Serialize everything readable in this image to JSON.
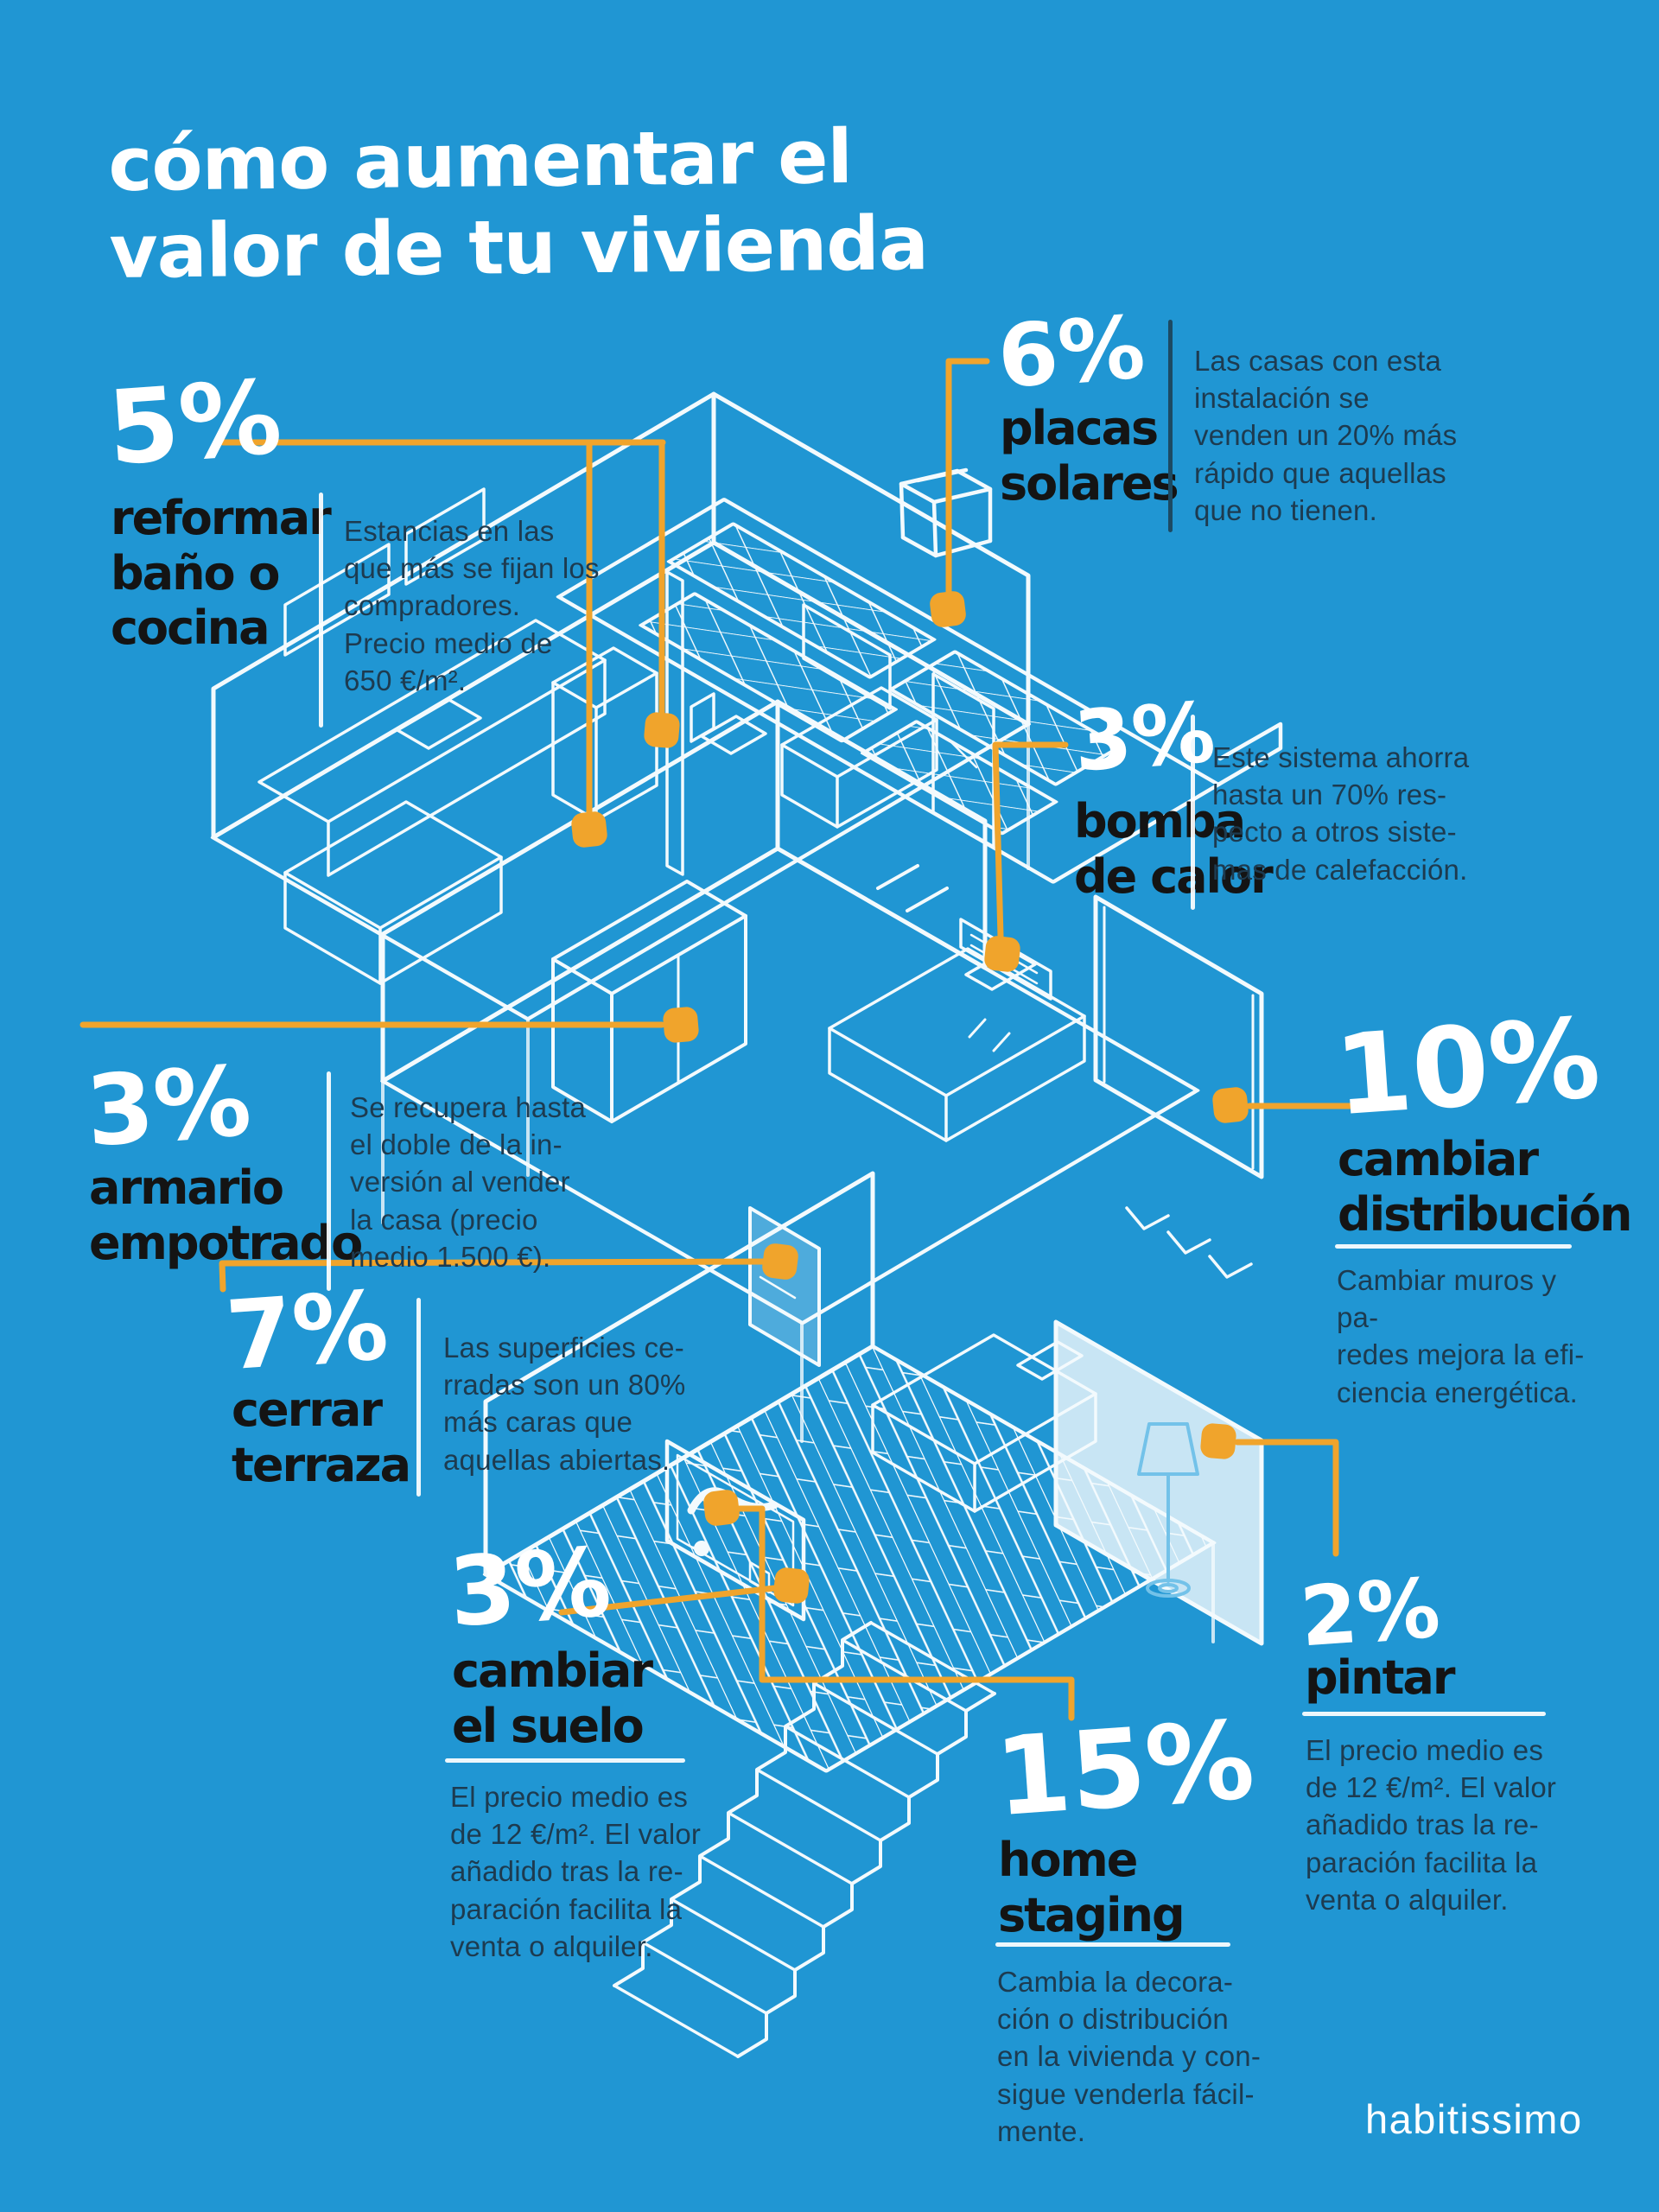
{
  "title": {
    "line1": "cómo aumentar el",
    "line2": "valor de tu vivienda"
  },
  "logo": "habitissimo",
  "colors": {
    "background": "#2096D3",
    "accent_orange": "#F0A42C",
    "label_black": "#141414",
    "description_navy": "#1D3B50",
    "white": "#FFFFFF"
  },
  "callouts": [
    {
      "id": "reformar-bano-cocina",
      "percent": "5%",
      "label_lines": [
        "reformar",
        "baño o",
        "cocina"
      ],
      "desc_lines": [
        "Estancias en las",
        "que más se fijan los",
        "compradores.",
        "Precio medio de",
        "650 €/m²."
      ]
    },
    {
      "id": "placas-solares",
      "percent": "6%",
      "label_lines": [
        "placas",
        "solares"
      ],
      "desc_lines": [
        "Las casas con esta",
        "instalación se",
        "venden un 20% más",
        "rápido que aquellas",
        "que no tienen."
      ]
    },
    {
      "id": "bomba-de-calor",
      "percent": "3%",
      "label_lines": [
        "bomba",
        "de calor"
      ],
      "desc_lines": [
        "Este sistema ahorra",
        "hasta un 70% res-",
        "pecto a otros siste-",
        "mas de calefacción."
      ]
    },
    {
      "id": "armario-empotrado",
      "percent": "3%",
      "label_lines": [
        "armario",
        "empotrado"
      ],
      "desc_lines": [
        "Se recupera hasta",
        "el doble de la in-",
        "versión al vender",
        "la casa (precio",
        "medio 1.500 €)."
      ]
    },
    {
      "id": "cerrar-terraza",
      "percent": "7%",
      "label_lines": [
        "cerrar",
        "terraza"
      ],
      "desc_lines": [
        "Las superficies ce-",
        "rradas son un 80%",
        "más caras que",
        "aquellas abiertas."
      ]
    },
    {
      "id": "cambiar-distribucion",
      "percent": "10%",
      "label_lines": [
        "cambiar",
        "distribución"
      ],
      "desc_lines": [
        "Cambiar muros y pa-",
        "redes mejora la efi-",
        "ciencia energética."
      ]
    },
    {
      "id": "cambiar-el-suelo",
      "percent": "3%",
      "label_lines": [
        "cambiar",
        "el suelo"
      ],
      "desc_lines": [
        "El precio medio es",
        "de 12 €/m². El valor",
        "añadido tras la re-",
        "paración facilita la",
        "venta o alquiler."
      ]
    },
    {
      "id": "pintar",
      "percent": "2%",
      "label_lines": [
        "pintar"
      ],
      "desc_lines": [
        "El precio medio es",
        "de 12 €/m². El valor",
        "añadido tras la re-",
        "paración facilita la",
        "venta o alquiler."
      ]
    },
    {
      "id": "home-staging",
      "percent": "15%",
      "label_lines": [
        "home",
        "staging"
      ],
      "desc_lines": [
        "Cambia la decora-",
        "ción o distribución",
        "en la vivienda y con-",
        "sigue venderla fácil-",
        "mente."
      ]
    }
  ]
}
